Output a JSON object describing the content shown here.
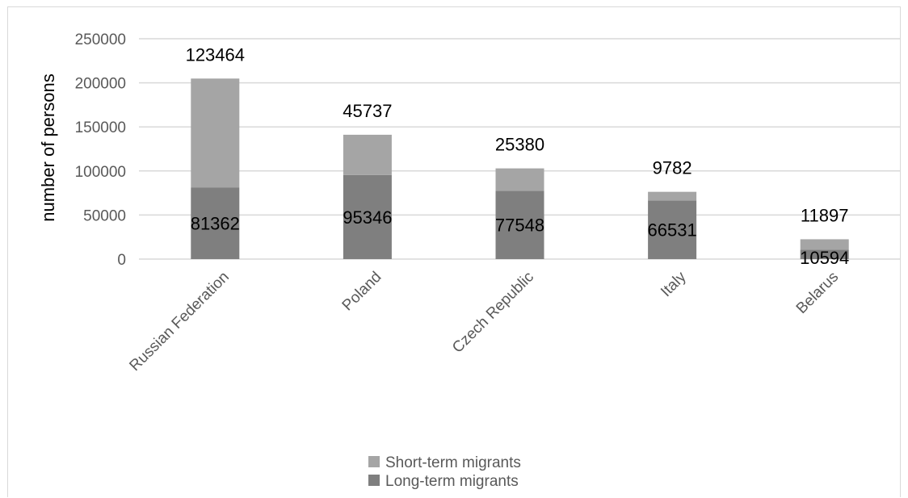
{
  "chart_data": {
    "type": "bar",
    "stacked": true,
    "categories": [
      "Russian Federation",
      "Poland",
      "Czech Republic",
      "Italy",
      "Belarus"
    ],
    "series": [
      {
        "name": "Long-term migrants",
        "values": [
          81362,
          95346,
          77548,
          66531,
          10594
        ],
        "color": "#7f7f7f"
      },
      {
        "name": "Short-term migrants",
        "values": [
          123464,
          45737,
          25380,
          9782,
          11897
        ],
        "color": "#a5a5a5"
      }
    ],
    "ylabel": "number of persons",
    "ylim": [
      0,
      250000
    ],
    "yticks": [
      "0",
      "50000",
      "100000",
      "150000",
      "200000",
      "250000"
    ],
    "grid": true,
    "legend": "bottom"
  }
}
